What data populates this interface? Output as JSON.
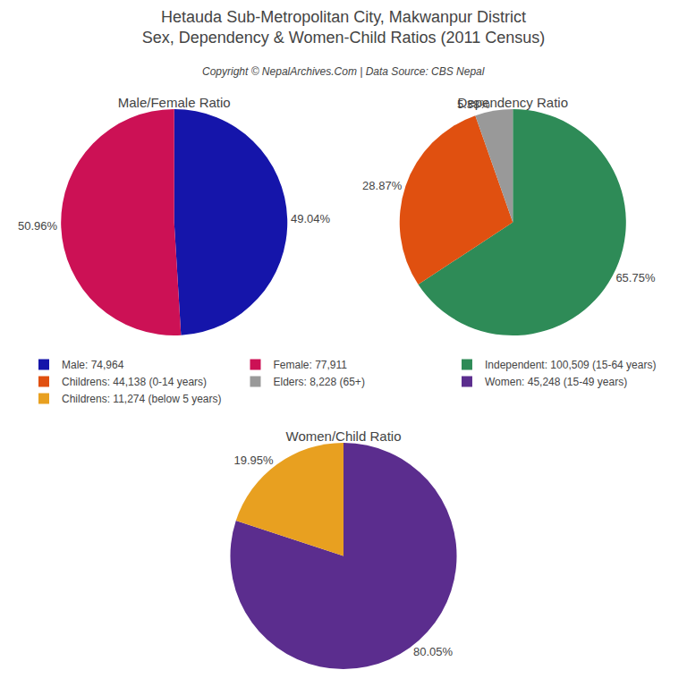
{
  "title": "Hetauda Sub-Metropolitan City, Makwanpur District\nSex, Dependency & Women-Child Ratios (2011 Census)",
  "subtitle": "Copyright © NepalArchives.Com | Data Source: CBS Nepal",
  "legend": "center",
  "chart_data": [
    {
      "type": "pie",
      "title": "Male/Female Ratio",
      "categories": [
        "Male: 74,964",
        "Female: 77,911"
      ],
      "values": [
        49.04,
        50.96
      ],
      "value_labels": [
        "49.04%",
        "50.96%"
      ],
      "colors": [
        "#1515aa",
        "#cc1155"
      ],
      "data_labels": true
    },
    {
      "type": "pie",
      "title": "Dependency Ratio",
      "categories": [
        "Independent: 100,509 (15-64 years)",
        "Childrens: 44,138 (0-14 years)",
        "Elders: 8,228 (65+)"
      ],
      "values": [
        65.75,
        28.87,
        5.38
      ],
      "value_labels": [
        "65.75%",
        "28.87%",
        "5.38%"
      ],
      "colors": [
        "#2e8b57",
        "#e05010",
        "#999999"
      ],
      "data_labels": true
    },
    {
      "type": "pie",
      "title": "Women/Child Ratio",
      "categories": [
        "Women: 45,248 (15-49 years)",
        "Childrens: 11,274 (below 5 years)"
      ],
      "values": [
        80.05,
        19.95
      ],
      "value_labels": [
        "80.05%",
        "19.95%"
      ],
      "colors": [
        "#5b2d8e",
        "#e8a020"
      ],
      "data_labels": true
    }
  ]
}
